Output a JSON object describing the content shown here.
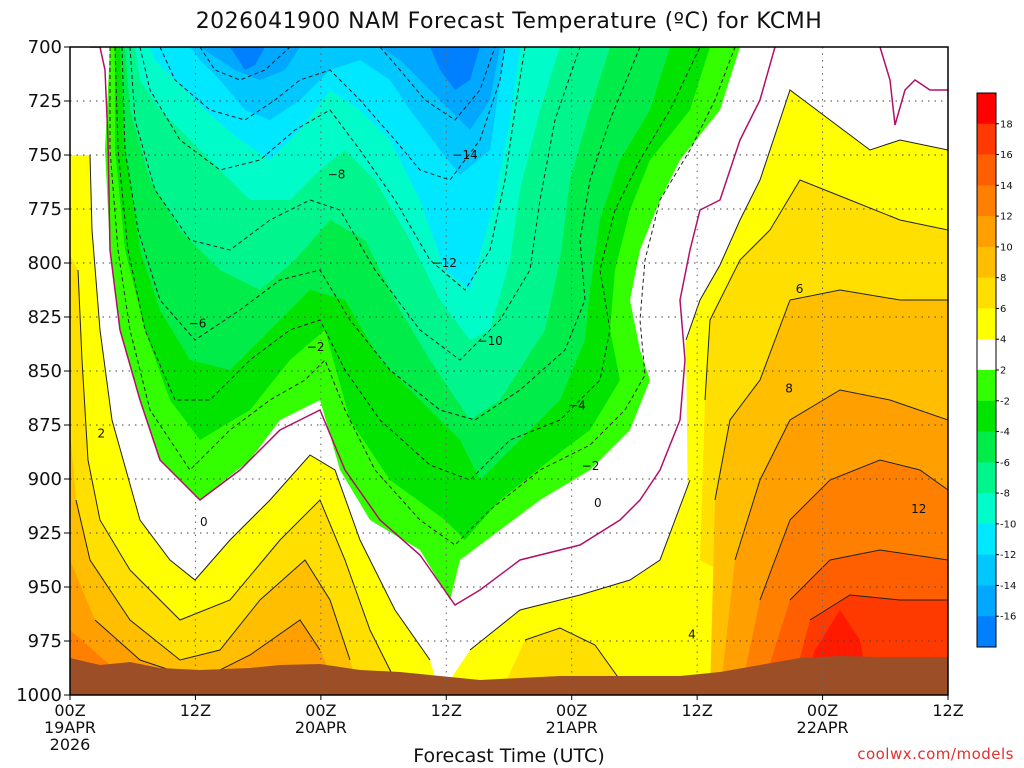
{
  "chart_data": {
    "type": "heatmap",
    "title": "2026041900 NAM Forecast Temperature (ºC) for KCMH",
    "xlabel": "Forecast Time (UTC)",
    "ylabel": "",
    "credit": "coolwx.com/models",
    "x_ticks": [
      {
        "hour": 0,
        "line1": "00Z",
        "line2": "19APR",
        "line3": "2026"
      },
      {
        "hour": 12,
        "line1": "12Z",
        "line2": "",
        "line3": ""
      },
      {
        "hour": 24,
        "line1": "00Z",
        "line2": "20APR",
        "line3": ""
      },
      {
        "hour": 36,
        "line1": "12Z",
        "line2": "",
        "line3": ""
      },
      {
        "hour": 48,
        "line1": "00Z",
        "line2": "21APR",
        "line3": ""
      },
      {
        "hour": 60,
        "line1": "12Z",
        "line2": "",
        "line3": ""
      },
      {
        "hour": 72,
        "line1": "00Z",
        "line2": "22APR",
        "line3": ""
      },
      {
        "hour": 84,
        "line1": "12Z",
        "line2": "",
        "line3": ""
      }
    ],
    "xlim": [
      0,
      84
    ],
    "y_ticks": [
      700,
      725,
      750,
      775,
      800,
      825,
      850,
      875,
      900,
      925,
      950,
      975,
      1000
    ],
    "ylim": [
      1000,
      700
    ],
    "grid": true,
    "colorbar_levels": [
      18,
      16,
      14,
      12,
      10,
      8,
      6,
      4,
      2,
      -2,
      -4,
      -6,
      -8,
      -10,
      -12,
      -14,
      -16
    ],
    "colorbar_colors": [
      "#ff0000",
      "#ff3a00",
      "#ff5f00",
      "#ff7f00",
      "#ff9f00",
      "#ffbf00",
      "#ffdf00",
      "#ffff00",
      "#ffffff",
      "#33ff00",
      "#00e400",
      "#00ec48",
      "#00f58c",
      "#00fcc8",
      "#00e8ff",
      "#00c8ff",
      "#00a8ff",
      "#0080ff"
    ],
    "contour_labels": [
      {
        "text": "−14",
        "hour": 37.8,
        "p": 750
      },
      {
        "text": "−12",
        "hour": 35.8,
        "p": 800
      },
      {
        "text": "−10",
        "hour": 40.2,
        "p": 836
      },
      {
        "text": "−8",
        "hour": 25.5,
        "p": 759
      },
      {
        "text": "−6",
        "hour": 12.2,
        "p": 828
      },
      {
        "text": "−4",
        "hour": 48.5,
        "p": 866
      },
      {
        "text": "−2",
        "hour": 23.5,
        "p": 839
      },
      {
        "text": "−2",
        "hour": 49.8,
        "p": 894
      },
      {
        "text": "0",
        "hour": 12.8,
        "p": 920
      },
      {
        "text": "0",
        "hour": 50.5,
        "p": 911
      },
      {
        "text": "2",
        "hour": 3.0,
        "p": 879
      },
      {
        "text": "4",
        "hour": 59.5,
        "p": 972
      },
      {
        "text": "6",
        "hour": 69.8,
        "p": 812
      },
      {
        "text": "8",
        "hour": 68.8,
        "p": 858
      },
      {
        "text": "12",
        "hour": 81.2,
        "p": 914
      }
    ],
    "surface_pressure_hpa": 983,
    "series": [
      {
        "hour": 0,
        "p_minus16": null,
        "p_minus14": null,
        "p_minus12": null,
        "p_minus10": null,
        "p_minus8": null,
        "p_minus6": null,
        "p_minus4": null,
        "p_minus2": null,
        "p_0": null,
        "p_2": 745,
        "p_4": 790,
        "p_6": 880
      },
      {
        "hour": 4,
        "p_minus4": 700,
        "p_minus2": 705,
        "p_0": 712,
        "p_2": 870,
        "p_4": 905,
        "p_6": 930
      },
      {
        "hour": 12,
        "p_minus10": 700,
        "p_minus8": 770,
        "p_minus6": 845,
        "p_minus4": 878,
        "p_minus2": 900,
        "p_0": 922,
        "p_2": 938,
        "p_4": 951,
        "p_6": 962,
        "p_8": 975
      },
      {
        "hour": 24,
        "p_minus14": 712,
        "p_minus12": 740,
        "p_minus10": 760,
        "p_minus8": 785,
        "p_minus6": 810,
        "p_minus4": 825,
        "p_minus2": 838,
        "p_0": 856,
        "p_2": 876,
        "p_4": 895,
        "p_6": 915,
        "p_8": 940,
        "p_10": 965
      },
      {
        "hour": 36,
        "p_minus16": 710,
        "p_minus14": 750,
        "p_minus12": 800,
        "p_minus10": 840,
        "p_minus8": 875,
        "p_minus6": 903,
        "p_minus4": 925,
        "p_minus2": 948,
        "p_0": 975,
        "p_2": 990
      },
      {
        "hour": 48,
        "p_minus12": 700,
        "p_minus10": 775,
        "p_minus8": 835,
        "p_minus6": 855,
        "p_minus4": 865,
        "p_minus2": 880,
        "p_0": 908,
        "p_2": 940,
        "p_4": 962,
        "p_6": 985
      },
      {
        "hour": 60,
        "p_minus6": 700,
        "p_minus4": 712,
        "p_minus2": 745,
        "p_0": 780,
        "p_2": 810,
        "p_4": 900,
        "p_6": 980
      },
      {
        "hour": 72,
        "p_0": 700,
        "p_2": 700,
        "p_4": 725,
        "p_6": 790,
        "p_8": 850,
        "p_10": 895,
        "p_12": 925,
        "p_14": 945,
        "p_16": 963
      },
      {
        "hour": 84,
        "p_0": 720,
        "p_2": 745,
        "p_4": 770,
        "p_6": 800,
        "p_8": 835,
        "p_10": 860,
        "p_12": 905,
        "p_14": 960
      }
    ]
  }
}
